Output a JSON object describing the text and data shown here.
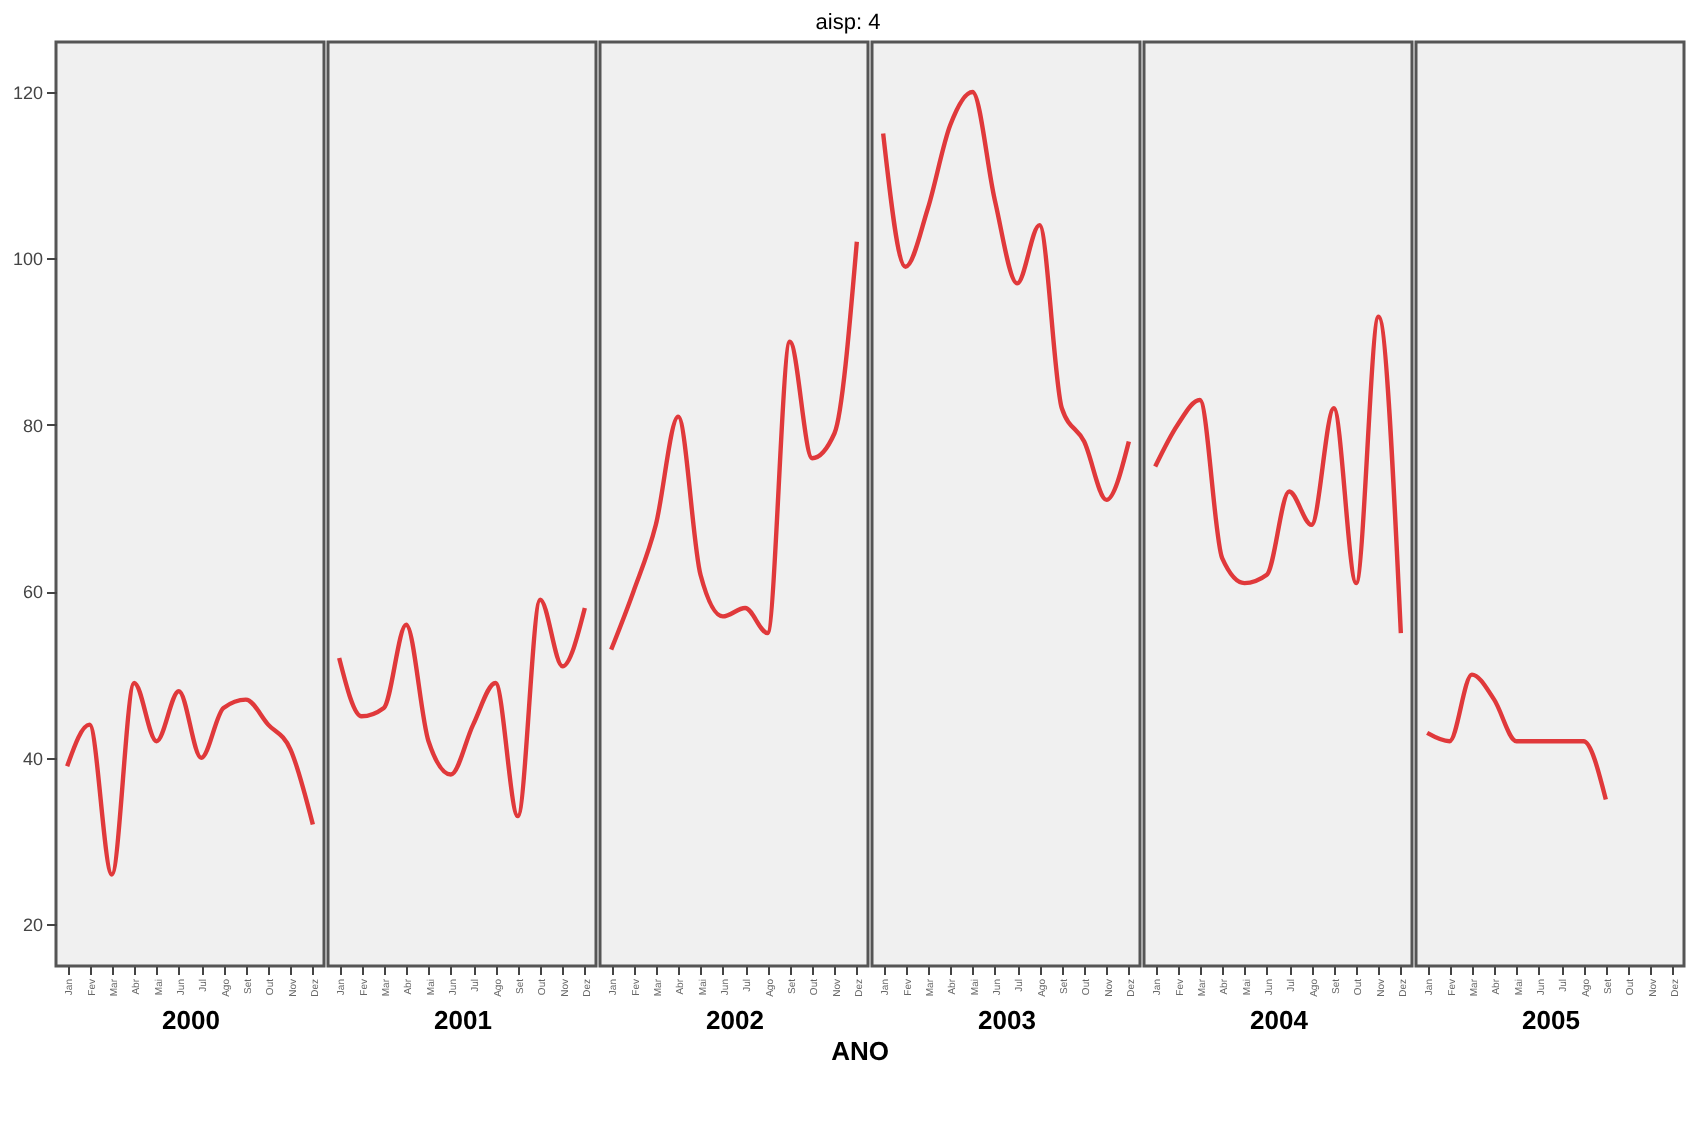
{
  "chart_data": [
    {
      "type": "line",
      "xlabel": "2000",
      "annotations": [
        "aisp: 4",
        "ANO"
      ],
      "categories": [
        "Jan",
        "Fev",
        "Mar",
        "Abr",
        "Mai",
        "Jun",
        "Jul",
        "Ago",
        "Set",
        "Out",
        "Nov",
        "Dez"
      ],
      "series": [
        {
          "color": "#e0393b",
          "values": [
            39,
            44,
            26,
            49,
            42,
            48,
            40,
            46,
            47,
            44,
            41,
            32
          ]
        }
      ],
      "ylim": [
        15,
        126
      ],
      "yticks": [
        20,
        40,
        60,
        80,
        100,
        120
      ],
      "grid": false,
      "marker": "none",
      "line_style": "solid"
    },
    {
      "type": "line",
      "xlabel": "2001",
      "categories": [
        "Jan",
        "Fev",
        "Mar",
        "Abr",
        "Mai",
        "Jun",
        "Jul",
        "Ago",
        "Set",
        "Out",
        "Nov",
        "Dez"
      ],
      "series": [
        {
          "color": "#e0393b",
          "values": [
            52,
            45,
            46,
            56,
            42,
            38,
            44,
            49,
            33,
            59,
            51,
            58
          ]
        }
      ],
      "ylim": [
        15,
        126
      ],
      "tick_labels": "x",
      "grid": false,
      "marker": "none",
      "line_style": "solid"
    },
    {
      "type": "line",
      "xlabel": "2002",
      "categories": [
        "Jan",
        "Fev",
        "Mar",
        "Abr",
        "Mai",
        "Jun",
        "Jul",
        "Ago",
        "Set",
        "Out",
        "Nov",
        "Dez"
      ],
      "series": [
        {
          "color": "#e0393b",
          "values": [
            53,
            60,
            68,
            81,
            62,
            57,
            58,
            55,
            90,
            76,
            79,
            102
          ]
        }
      ],
      "ylim": [
        15,
        126
      ],
      "tick_labels": "x",
      "grid": false,
      "marker": "none",
      "line_style": "solid"
    },
    {
      "type": "line",
      "xlabel": "2003",
      "categories": [
        "Jan",
        "Fev",
        "Mar",
        "Abr",
        "Mai",
        "Jun",
        "Jul",
        "Ago",
        "Set",
        "Out",
        "Nov",
        "Dez"
      ],
      "series": [
        {
          "color": "#e0393b",
          "values": [
            115,
            99,
            106,
            116,
            120,
            107,
            97,
            104,
            82,
            78,
            71,
            78
          ]
        }
      ],
      "ylim": [
        15,
        126
      ],
      "tick_labels": "x",
      "grid": false,
      "marker": "none",
      "line_style": "solid"
    },
    {
      "type": "line",
      "xlabel": "2004",
      "categories": [
        "Jan",
        "Fev",
        "Mar",
        "Abr",
        "Mai",
        "Jun",
        "Jul",
        "Ago",
        "Set",
        "Out",
        "Nov",
        "Dez"
      ],
      "series": [
        {
          "color": "#e0393b",
          "values": [
            75,
            80,
            83,
            64,
            61,
            62,
            72,
            68,
            82,
            61,
            93,
            55
          ]
        }
      ],
      "ylim": [
        15,
        126
      ],
      "tick_labels": "x",
      "grid": false,
      "marker": "none",
      "line_style": "solid"
    },
    {
      "type": "line",
      "xlabel": "2005",
      "categories": [
        "Jan",
        "Fev",
        "Mar",
        "Abr",
        "Mai",
        "Jun",
        "Jul",
        "Ago",
        "Set",
        "Out",
        "Nov",
        "Dez"
      ],
      "series": [
        {
          "color": "#e0393b",
          "values": [
            43,
            42,
            50,
            47,
            42,
            42,
            42,
            42,
            35,
            null,
            null,
            null
          ]
        }
      ],
      "ylim": [
        15,
        126
      ],
      "tick_labels": "x",
      "grid": false,
      "marker": "none",
      "line_style": "solid"
    }
  ]
}
